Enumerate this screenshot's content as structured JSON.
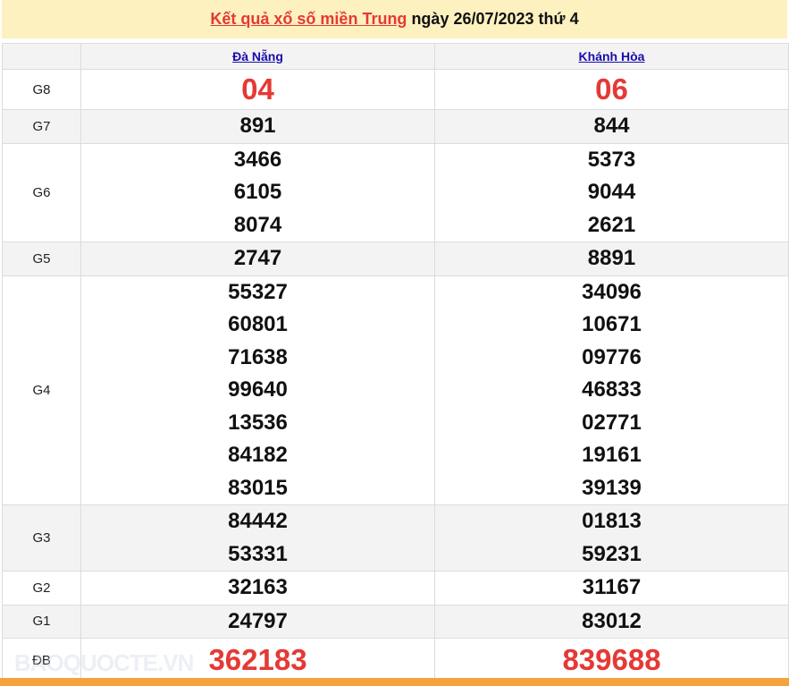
{
  "header": {
    "link_text": "Kết quả xổ số miền Trung",
    "rest_text": " ngày 26/07/2023 thứ 4"
  },
  "provinces": [
    "Đà Nẵng",
    "Khánh Hòa"
  ],
  "prizes": [
    {
      "label": "G8",
      "values": [
        [
          "04"
        ],
        [
          "06"
        ]
      ],
      "style": "red"
    },
    {
      "label": "G7",
      "values": [
        [
          "891"
        ],
        [
          "844"
        ]
      ]
    },
    {
      "label": "G6",
      "values": [
        [
          "3466",
          "6105",
          "8074"
        ],
        [
          "5373",
          "9044",
          "2621"
        ]
      ]
    },
    {
      "label": "G5",
      "values": [
        [
          "2747"
        ],
        [
          "8891"
        ]
      ]
    },
    {
      "label": "G4",
      "values": [
        [
          "55327",
          "60801",
          "71638",
          "99640",
          "13536",
          "84182",
          "83015"
        ],
        [
          "34096",
          "10671",
          "09776",
          "46833",
          "02771",
          "19161",
          "39139"
        ]
      ]
    },
    {
      "label": "G3",
      "values": [
        [
          "84442",
          "53331"
        ],
        [
          "01813",
          "59231"
        ]
      ]
    },
    {
      "label": "G2",
      "values": [
        [
          "32163"
        ],
        [
          "31167"
        ]
      ]
    },
    {
      "label": "G1",
      "values": [
        [
          "24797"
        ],
        [
          "83012"
        ]
      ]
    },
    {
      "label": "ĐB",
      "values": [
        [
          "362183"
        ],
        [
          "839688"
        ]
      ],
      "style": "big"
    }
  ],
  "watermark": "BAOQUOCTE.VN",
  "colors": {
    "accent_red": "#e53935",
    "header_bg": "#fdf1c0",
    "link_blue": "#1a0dab",
    "bottom_bar": "#f4a33c"
  }
}
